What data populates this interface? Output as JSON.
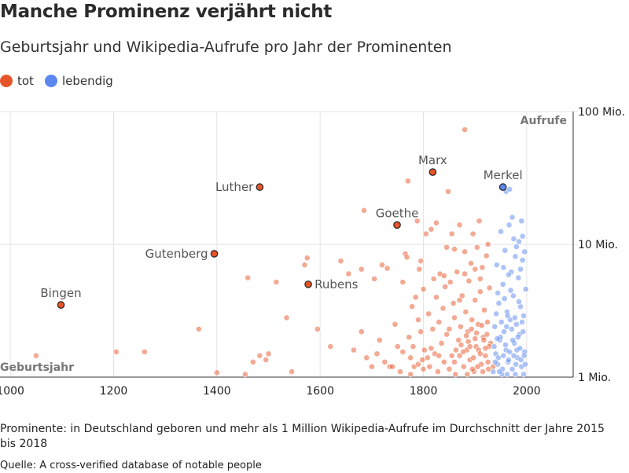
{
  "title": "Manche Prominenz verjährt nicht",
  "subtitle": "Geburtsjahr und Wikipedia-Aufrufe pro Jahr der Prominenten",
  "legend": [
    {
      "label": "tot",
      "color": "#e8552a"
    },
    {
      "label": "lebendig",
      "color": "#5b87f0"
    }
  ],
  "footnote": "Prominente: in Deutschland geboren und mehr als 1 Million Wikipedia-Aufrufe im Durchschnitt der Jahre 2015 bis 2018",
  "source": "Quelle: A cross-verified database of notable people",
  "chart_data": {
    "type": "scatter",
    "xlabel": "Geburtsjahr",
    "ylabel": "Aufrufe",
    "xlim": [
      980,
      2090
    ],
    "ylim": [
      1000000,
      100000000
    ],
    "y_scale": "log",
    "x_ticks": [
      "1000",
      "1200",
      "1400",
      "1600",
      "1800",
      "2000"
    ],
    "y_ticks": [
      "1 Mio.",
      "10 Mio.",
      "100 Mio."
    ],
    "grid": true,
    "series": [
      {
        "name": "tot",
        "color": "#e8552a",
        "points": [
          [
            1050,
            1.45
          ],
          [
            1205,
            1.55
          ],
          [
            1260,
            1.55
          ],
          [
            1365,
            2.3
          ],
          [
            1400,
            1.08
          ],
          [
            1455,
            1.05
          ],
          [
            1470,
            1.3
          ],
          [
            1483,
            1.45
          ],
          [
            1495,
            1.35
          ],
          [
            1500,
            1.5
          ],
          [
            1515,
            5.2
          ],
          [
            1535,
            2.8
          ],
          [
            1545,
            1.1
          ],
          [
            1460,
            5.6
          ],
          [
            1575,
            7.9
          ],
          [
            1640,
            7.5
          ],
          [
            1655,
            6.0
          ],
          [
            1680,
            6.5
          ],
          [
            1685,
            18
          ],
          [
            1700,
            1.2
          ],
          [
            1705,
            5.5
          ],
          [
            1710,
            1.5
          ],
          [
            1715,
            1.9
          ],
          [
            1720,
            7.0
          ],
          [
            1725,
            1.3
          ],
          [
            1730,
            6.6
          ],
          [
            1735,
            1.2
          ],
          [
            1745,
            2.5
          ],
          [
            1755,
            1.1
          ],
          [
            1760,
            5.2
          ],
          [
            1765,
            8.5
          ],
          [
            1768,
            8.0
          ],
          [
            1770,
            30
          ],
          [
            1772,
            2.0
          ],
          [
            1775,
            1.4
          ],
          [
            1778,
            3.4
          ],
          [
            1780,
            1.7
          ],
          [
            1782,
            1.2
          ],
          [
            1785,
            4.0
          ],
          [
            1788,
            15
          ],
          [
            1790,
            1.25
          ],
          [
            1792,
            6.5
          ],
          [
            1795,
            2.2
          ],
          [
            1798,
            1.35
          ],
          [
            1800,
            4.6
          ],
          [
            1802,
            1.6
          ],
          [
            1805,
            12
          ],
          [
            1808,
            1.4
          ],
          [
            1810,
            3.0
          ],
          [
            1812,
            1.2
          ],
          [
            1815,
            13
          ],
          [
            1818,
            2.3
          ],
          [
            1820,
            5.5
          ],
          [
            1822,
            1.5
          ],
          [
            1825,
            4.0
          ],
          [
            1828,
            1.1
          ],
          [
            1830,
            2.6
          ],
          [
            1832,
            6.0
          ],
          [
            1835,
            1.8
          ],
          [
            1838,
            3.3
          ],
          [
            1840,
            1.3
          ],
          [
            1842,
            4.8
          ],
          [
            1845,
            2.1
          ],
          [
            1848,
            25
          ],
          [
            1850,
            1.15
          ],
          [
            1852,
            5.2
          ],
          [
            1855,
            1.45
          ],
          [
            1858,
            3.6
          ],
          [
            1860,
            2.8
          ],
          [
            1862,
            1.05
          ],
          [
            1865,
            6.2
          ],
          [
            1868,
            1.9
          ],
          [
            1870,
            14
          ],
          [
            1872,
            2.4
          ],
          [
            1875,
            4.1
          ],
          [
            1878,
            1.2
          ],
          [
            1880,
            73
          ],
          [
            1882,
            3.1
          ],
          [
            1884,
            1.6
          ],
          [
            1886,
            2.2
          ],
          [
            1888,
            5.3
          ],
          [
            1890,
            1.35
          ],
          [
            1892,
            7.2
          ],
          [
            1894,
            2.7
          ],
          [
            1896,
            12
          ],
          [
            1898,
            1.1
          ],
          [
            1900,
            3.8
          ],
          [
            1902,
            1.7
          ],
          [
            1904,
            9.5
          ],
          [
            1906,
            2.5
          ],
          [
            1908,
            15
          ],
          [
            1910,
            4.4
          ],
          [
            1912,
            1.25
          ],
          [
            1914,
            6.7
          ],
          [
            1916,
            2.0
          ],
          [
            1918,
            3.2
          ],
          [
            1920,
            1.45
          ],
          [
            1922,
            8.2
          ],
          [
            1924,
            2.6
          ],
          [
            1926,
            1.15
          ],
          [
            1928,
            4.7
          ],
          [
            1930,
            1.8
          ],
          [
            1885,
            1.05
          ],
          [
            1895,
            1.15
          ],
          [
            1905,
            1.2
          ],
          [
            1915,
            1.1
          ],
          [
            1925,
            1.3
          ],
          [
            1877,
            1.55
          ],
          [
            1887,
            1.85
          ],
          [
            1897,
            1.4
          ],
          [
            1907,
            1.6
          ],
          [
            1917,
            1.9
          ],
          [
            1927,
            1.7
          ],
          [
            1863,
            1.6
          ],
          [
            1873,
            1.75
          ],
          [
            1883,
            2.05
          ],
          [
            1893,
            2.3
          ],
          [
            1903,
            2.15
          ],
          [
            1913,
            2.45
          ],
          [
            1923,
            2.1
          ],
          [
            1860,
            1.3
          ],
          [
            1870,
            1.45
          ],
          [
            1890,
            1.7
          ],
          [
            1900,
            1.95
          ],
          [
            1910,
            1.5
          ],
          [
            1920,
            1.65
          ],
          [
            1850,
            2.3
          ],
          [
            1830,
            1.45
          ],
          [
            1815,
            1.65
          ],
          [
            1800,
            1.15
          ],
          [
            1790,
            2.7
          ],
          [
            1775,
            1.05
          ],
          [
            1760,
            1.55
          ],
          [
            1750,
            1.7
          ],
          [
            1740,
            1.2
          ],
          [
            1690,
            1.4
          ],
          [
            1680,
            2.2
          ],
          [
            1665,
            1.6
          ],
          [
            1620,
            1.7
          ],
          [
            1595,
            2.3
          ],
          [
            1570,
            7.0
          ],
          [
            1845,
            9.5
          ],
          [
            1880,
            6.0
          ],
          [
            1900,
            6.5
          ],
          [
            1910,
            5.5
          ],
          [
            1925,
            10
          ],
          [
            1935,
            1.2
          ],
          [
            1880,
            8.8
          ],
          [
            1870,
            3.8
          ],
          [
            1860,
            9.2
          ],
          [
            1855,
            12
          ],
          [
            1840,
            5.8
          ],
          [
            1825,
            14.5
          ],
          [
            1795,
            7.5
          ]
        ]
      },
      {
        "name": "lebendig",
        "color": "#5b87f0",
        "points": [
          [
            1935,
            1.1
          ],
          [
            1938,
            2.4
          ],
          [
            1940,
            1.5
          ],
          [
            1942,
            7.0
          ],
          [
            1944,
            1.25
          ],
          [
            1946,
            3.6
          ],
          [
            1948,
            1.9
          ],
          [
            1950,
            12.5
          ],
          [
            1952,
            1.05
          ],
          [
            1954,
            5.0
          ],
          [
            1956,
            2.2
          ],
          [
            1958,
            9.0
          ],
          [
            1960,
            1.6
          ],
          [
            1962,
            3.1
          ],
          [
            1964,
            1.3
          ],
          [
            1966,
            14
          ],
          [
            1968,
            2.7
          ],
          [
            1970,
            6.2
          ],
          [
            1972,
            1.15
          ],
          [
            1974,
            4.1
          ],
          [
            1976,
            1.8
          ],
          [
            1978,
            8.1
          ],
          [
            1980,
            2.5
          ],
          [
            1982,
            1.4
          ],
          [
            1984,
            5.6
          ],
          [
            1986,
            2.1
          ],
          [
            1988,
            3.4
          ],
          [
            1990,
            1.2
          ],
          [
            1992,
            7.6
          ],
          [
            1994,
            2.9
          ],
          [
            1996,
            1.55
          ],
          [
            1998,
            4.6
          ],
          [
            1937,
            1.7
          ],
          [
            1941,
            3.0
          ],
          [
            1945,
            1.4
          ],
          [
            1949,
            2.0
          ],
          [
            1953,
            1.15
          ],
          [
            1957,
            3.9
          ],
          [
            1961,
            2.4
          ],
          [
            1965,
            1.35
          ],
          [
            1969,
            4.5
          ],
          [
            1973,
            1.9
          ],
          [
            1977,
            2.8
          ],
          [
            1981,
            1.6
          ],
          [
            1985,
            3.7
          ],
          [
            1989,
            1.35
          ],
          [
            1993,
            2.2
          ],
          [
            1997,
            1.25
          ],
          [
            1939,
            1.3
          ],
          [
            1943,
            1.95
          ],
          [
            1947,
            1.1
          ],
          [
            1951,
            2.6
          ],
          [
            1955,
            1.45
          ],
          [
            1959,
            1.75
          ],
          [
            1963,
            2.9
          ],
          [
            1967,
            1.55
          ],
          [
            1971,
            2.3
          ],
          [
            1975,
            1.45
          ],
          [
            1979,
            1.25
          ],
          [
            1983,
            2.0
          ],
          [
            1987,
            1.65
          ],
          [
            1991,
            2.6
          ],
          [
            1995,
            1.45
          ],
          [
            1960,
            25
          ],
          [
            1967,
            26
          ],
          [
            1972,
            16
          ],
          [
            1975,
            11
          ],
          [
            1985,
            10.5
          ],
          [
            1990,
            15
          ],
          [
            1955,
            6.7
          ],
          [
            1965,
            5.9
          ],
          [
            1980,
            9.6
          ],
          [
            1944,
            4.3
          ],
          [
            1988,
            6.5
          ],
          [
            1992,
            11.5
          ],
          [
            1996,
            8.8
          ],
          [
            1962,
            1.05
          ],
          [
            1978,
            1.05
          ],
          [
            1994,
            1.05
          ]
        ]
      }
    ],
    "highlights": [
      {
        "name": "Bingen",
        "x": 1098,
        "y": 3.5,
        "status": "tot"
      },
      {
        "name": "Gutenberg",
        "x": 1395,
        "y": 8.5,
        "status": "tot"
      },
      {
        "name": "Luther",
        "x": 1483,
        "y": 27,
        "status": "tot"
      },
      {
        "name": "Rubens",
        "x": 1577,
        "y": 5.0,
        "status": "tot"
      },
      {
        "name": "Goethe",
        "x": 1749,
        "y": 14,
        "status": "tot"
      },
      {
        "name": "Marx",
        "x": 1818,
        "y": 35,
        "status": "tot"
      },
      {
        "name": "Merkel",
        "x": 1954,
        "y": 27,
        "status": "lebendig"
      }
    ]
  }
}
